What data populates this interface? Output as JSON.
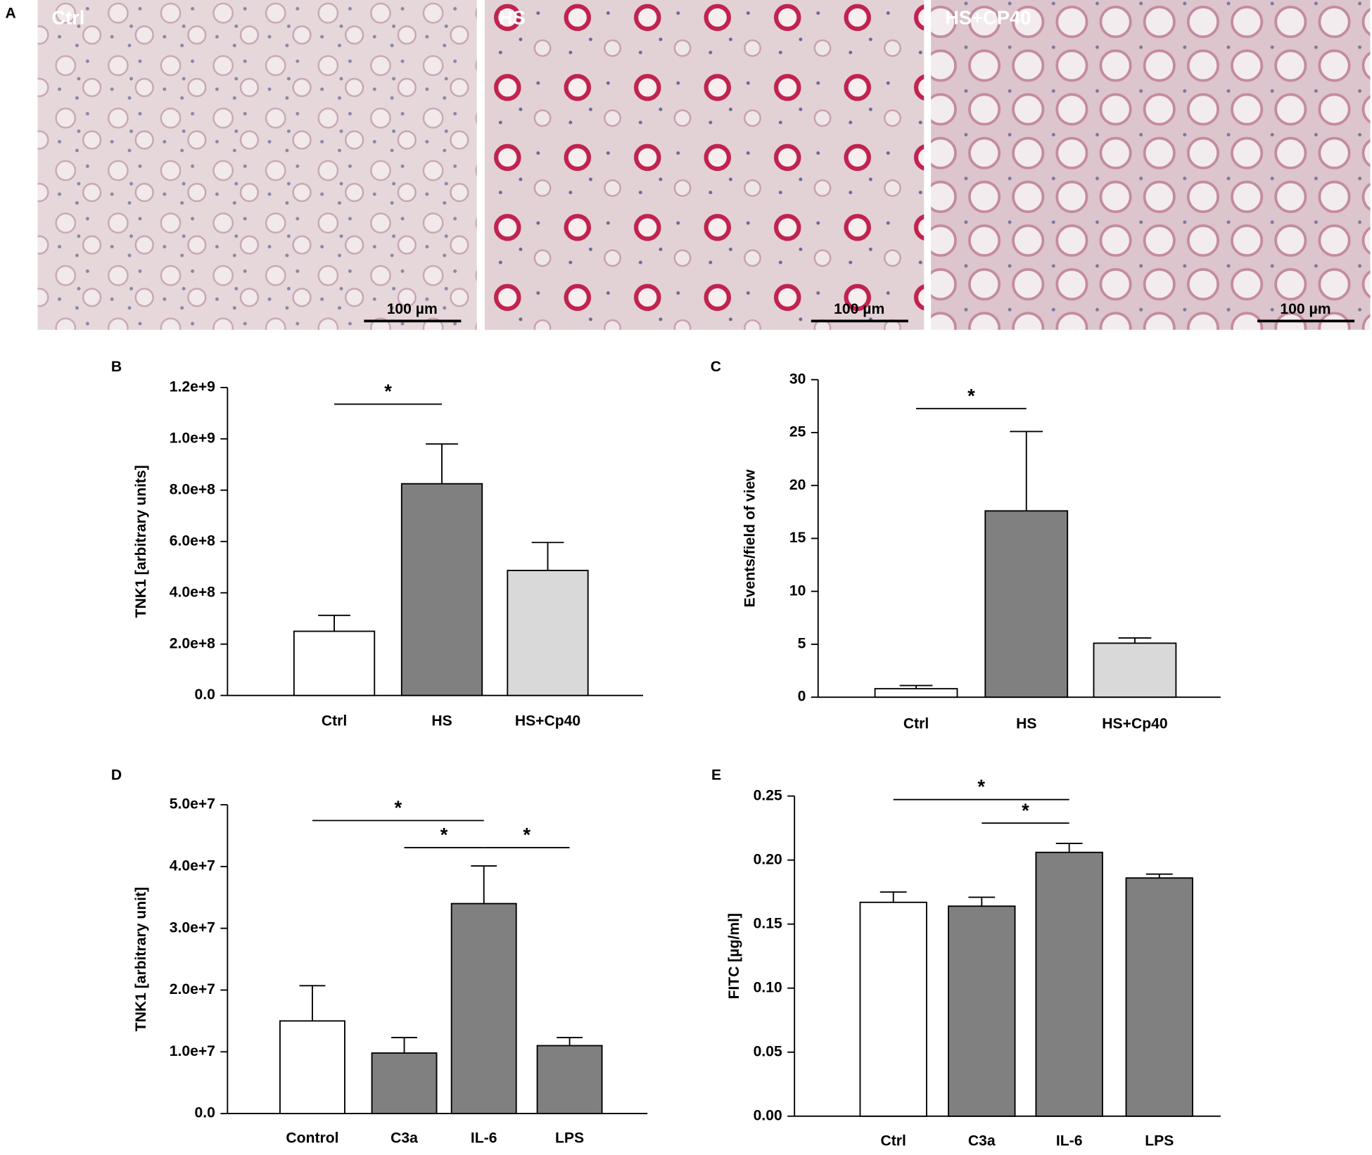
{
  "figure": {
    "panel_label": "A",
    "micrographs": [
      {
        "label": "Ctrl",
        "scale_bar": "100 µm"
      },
      {
        "label": "HS",
        "scale_bar": "100 µm"
      },
      {
        "label": "HS+CP40",
        "scale_bar": "100 µm"
      }
    ]
  },
  "chart_data": [
    {
      "type": "bar",
      "panel_label": "B",
      "y_label": "TNK1 [arbitrary units]",
      "categories": [
        "Ctrl",
        "HS",
        "HS+Cp40"
      ],
      "values": [
        250000000,
        825000000,
        487000000
      ],
      "errors": [
        62000000,
        155000000,
        109000000
      ],
      "colors": [
        "#ffffff",
        "#808080",
        "#d9d9d9"
      ],
      "ylim": [
        0,
        1200000000
      ],
      "yticks": [
        {
          "value": 0,
          "label": "0.0"
        },
        {
          "value": 200000000,
          "label": "2.0e+8"
        },
        {
          "value": 400000000,
          "label": "4.0e+8"
        },
        {
          "value": 600000000,
          "label": "6.0e+8"
        },
        {
          "value": 800000000,
          "label": "8.0e+8"
        },
        {
          "value": 1000000000,
          "label": "1.0e+9"
        },
        {
          "value": 1200000000,
          "label": "1.2e+9"
        }
      ],
      "significance": [
        {
          "between": [
            "Ctrl",
            "HS"
          ],
          "label": "*"
        }
      ]
    },
    {
      "type": "bar",
      "panel_label": "C",
      "y_label": "Events/field of view",
      "categories": [
        "Ctrl",
        "HS",
        "HS+Cp40"
      ],
      "values": [
        0.8,
        17.6,
        5.1
      ],
      "errors": [
        0.3,
        7.5,
        0.5
      ],
      "colors": [
        "#ffffff",
        "#808080",
        "#d9d9d9"
      ],
      "ylim": [
        0,
        30
      ],
      "yticks": [
        0,
        5,
        10,
        15,
        20,
        25,
        30
      ],
      "significance": [
        {
          "between": [
            "Ctrl",
            "HS"
          ],
          "label": "*"
        }
      ]
    },
    {
      "type": "bar",
      "panel_label": "D",
      "y_label": "TNK1 [arbitrary unit]",
      "categories": [
        "Control",
        "C3a",
        "IL-6",
        "LPS"
      ],
      "values": [
        15000000,
        9800000,
        34000000,
        11000000
      ],
      "errors": [
        5700000,
        2500000,
        6100000,
        1300000
      ],
      "colors": [
        "#ffffff",
        "#808080",
        "#808080",
        "#808080"
      ],
      "ylim": [
        0,
        50000000
      ],
      "yticks": [
        {
          "value": 0,
          "label": "0.0"
        },
        {
          "value": 10000000,
          "label": "1.0e+7"
        },
        {
          "value": 20000000,
          "label": "2.0e+7"
        },
        {
          "value": 30000000,
          "label": "3.0e+7"
        },
        {
          "value": 40000000,
          "label": "4.0e+7"
        },
        {
          "value": 50000000,
          "label": "5.0e+7"
        }
      ],
      "significance": [
        {
          "between": [
            "Control",
            "IL-6"
          ],
          "label": "*"
        },
        {
          "between": [
            "C3a",
            "IL-6"
          ],
          "label": "*"
        },
        {
          "between": [
            "IL-6",
            "LPS"
          ],
          "label": "*"
        }
      ]
    },
    {
      "type": "bar",
      "panel_label": "E",
      "y_label": "FITC [µg/ml]",
      "categories": [
        "Ctrl",
        "C3a",
        "IL-6",
        "LPS"
      ],
      "values": [
        0.167,
        0.164,
        0.206,
        0.186
      ],
      "errors": [
        0.008,
        0.007,
        0.007,
        0.003
      ],
      "colors": [
        "#ffffff",
        "#808080",
        "#808080",
        "#808080"
      ],
      "ylim": [
        0,
        0.25
      ],
      "yticks": [
        {
          "value": 0,
          "label": "0.00"
        },
        {
          "value": 0.05,
          "label": "0.05"
        },
        {
          "value": 0.1,
          "label": "0.10"
        },
        {
          "value": 0.15,
          "label": "0.15"
        },
        {
          "value": 0.2,
          "label": "0.20"
        },
        {
          "value": 0.25,
          "label": "0.25"
        }
      ],
      "significance": [
        {
          "between": [
            "Ctrl",
            "IL-6"
          ],
          "label": "*"
        },
        {
          "between": [
            "C3a",
            "IL-6"
          ],
          "label": "*"
        }
      ]
    }
  ]
}
